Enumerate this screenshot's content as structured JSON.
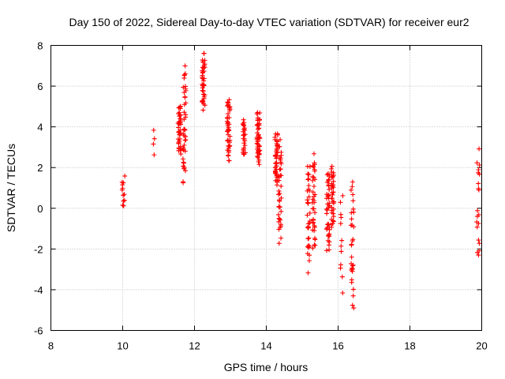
{
  "chart_data": {
    "type": "scatter",
    "title": "Day 150 of 2022, Sidereal Day-to-day VTEC variation (SDTVAR) for receiver eur2",
    "xlabel": "GPS time / hours",
    "ylabel": "SDTVAR / TECUs",
    "xlim": [
      8,
      20
    ],
    "ylim": [
      -6,
      8
    ],
    "x_ticks": [
      "8",
      "10",
      "12",
      "14",
      "16",
      "18",
      "20"
    ],
    "y_ticks": [
      "-6",
      "-4",
      "-2",
      "0",
      "2",
      "4",
      "6",
      "8"
    ],
    "grid": true,
    "marker": "+",
    "color": "#ff0000",
    "clusters": [
      {
        "x": 10.02,
        "y_min": 0.0,
        "y_max": 1.6,
        "n": 12
      },
      {
        "x": 10.88,
        "y_min": 2.6,
        "y_max": 3.9,
        "n": 4
      },
      {
        "x": 11.58,
        "y_min": 2.6,
        "y_max": 5.2,
        "n": 40
      },
      {
        "x": 11.72,
        "y_min": 1.1,
        "y_max": 7.1,
        "n": 40
      },
      {
        "x": 12.25,
        "y_min": 4.8,
        "y_max": 7.7,
        "n": 40
      },
      {
        "x": 12.95,
        "y_min": 2.2,
        "y_max": 5.7,
        "n": 45
      },
      {
        "x": 13.38,
        "y_min": 2.5,
        "y_max": 4.5,
        "n": 25
      },
      {
        "x": 13.78,
        "y_min": 2.1,
        "y_max": 4.8,
        "n": 50
      },
      {
        "x": 14.28,
        "y_min": 1.0,
        "y_max": 3.8,
        "n": 40
      },
      {
        "x": 14.38,
        "y_min": -1.8,
        "y_max": 3.6,
        "n": 40
      },
      {
        "x": 15.18,
        "y_min": -3.3,
        "y_max": 2.7,
        "n": 35
      },
      {
        "x": 15.32,
        "y_min": -2.3,
        "y_max": 2.9,
        "n": 35
      },
      {
        "x": 15.72,
        "y_min": -2.3,
        "y_max": 2.0,
        "n": 40
      },
      {
        "x": 15.85,
        "y_min": -1.2,
        "y_max": 2.2,
        "n": 35
      },
      {
        "x": 16.1,
        "y_min": -4.3,
        "y_max": 1.3,
        "n": 12
      },
      {
        "x": 16.4,
        "y_min": -5.3,
        "y_max": 1.5,
        "n": 30
      },
      {
        "x": 19.9,
        "y_min": -3.0,
        "y_max": 3.2,
        "n": 20
      }
    ]
  }
}
